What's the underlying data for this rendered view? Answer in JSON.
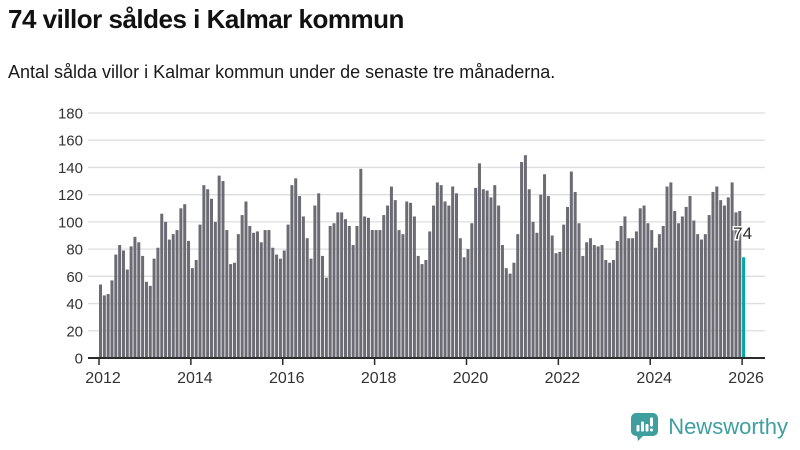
{
  "header": {
    "title": "74 villor såldes i Kalmar kommun",
    "subtitle": "Antal sålda villor i Kalmar kommun under de senaste tre månaderna."
  },
  "chart_data": {
    "type": "bar",
    "title": "74 villor såldes i Kalmar kommun",
    "xlabel": "",
    "ylabel": "",
    "ylim": [
      0,
      180
    ],
    "ytick_step": 20,
    "y_tick_labels": [
      "0",
      "20",
      "40",
      "60",
      "80",
      "100",
      "120",
      "140",
      "160",
      "180"
    ],
    "x_tick_labels": [
      "2012",
      "2014",
      "2016",
      "2018",
      "2020",
      "2022",
      "2024",
      "2026"
    ],
    "grid": true,
    "start": {
      "year": 2012,
      "month": 1
    },
    "frequency": "monthly",
    "series": [
      {
        "name": "Antal sålda villor",
        "values": [
          54,
          46,
          47,
          57,
          76,
          83,
          79,
          65,
          82,
          89,
          85,
          75,
          56,
          53,
          73,
          81,
          106,
          100,
          87,
          91,
          94,
          110,
          113,
          86,
          66,
          72,
          98,
          127,
          124,
          117,
          100,
          134,
          130,
          94,
          69,
          70,
          91,
          105,
          115,
          97,
          92,
          93,
          85,
          94,
          94,
          81,
          76,
          73,
          79,
          98,
          127,
          132,
          119,
          104,
          88,
          73,
          112,
          121,
          75,
          59,
          97,
          99,
          107,
          107,
          102,
          97,
          83,
          97,
          139,
          104,
          103,
          94,
          94,
          94,
          105,
          112,
          126,
          116,
          94,
          91,
          115,
          114,
          104,
          75,
          69,
          72,
          93,
          112,
          129,
          127,
          115,
          112,
          126,
          121,
          88,
          74,
          80,
          99,
          125,
          143,
          124,
          123,
          118,
          127,
          112,
          83,
          66,
          62,
          70,
          91,
          144,
          149,
          124,
          100,
          92,
          120,
          135,
          119,
          90,
          77,
          78,
          98,
          111,
          137,
          122,
          99,
          75,
          85,
          88,
          83,
          82,
          83,
          72,
          70,
          72,
          86,
          97,
          104,
          88,
          88,
          93,
          110,
          112,
          99,
          94,
          81,
          91,
          97,
          126,
          129,
          108,
          99,
          104,
          111,
          119,
          101,
          91,
          87,
          91,
          105,
          122,
          126,
          116,
          112,
          118,
          129,
          107,
          108,
          74
        ]
      }
    ],
    "last_point": {
      "label": "74",
      "value": 74
    },
    "colors": {
      "bar": "#6b6b74",
      "highlight": "#00a5a5",
      "grid": "#dddddd",
      "axis": "#2b2b2b",
      "tick_text": "#333333"
    },
    "legend": false
  },
  "branding": {
    "name": "Newsworthy",
    "color": "#3f9f9f",
    "icon": "newsworthy-chart-bubble-icon"
  }
}
